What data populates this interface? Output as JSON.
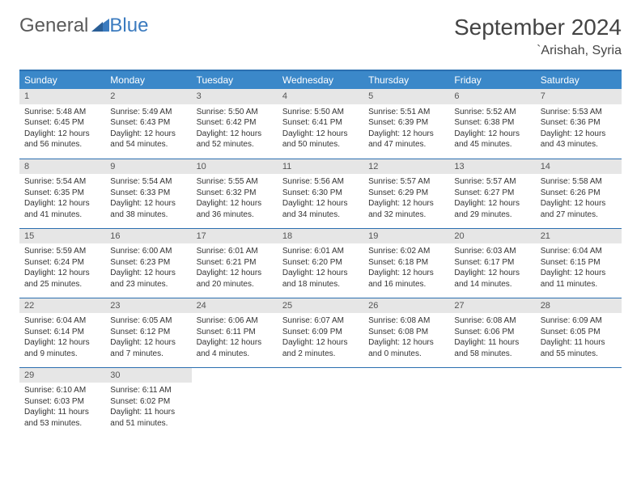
{
  "logo": {
    "word1": "General",
    "word2": "Blue"
  },
  "title": "September 2024",
  "location": "`Arishah, Syria",
  "colors": {
    "header_bg": "#3b88c9",
    "header_text": "#ffffff",
    "border": "#2b6fb0",
    "daynum_bg": "#e6e6e6",
    "logo_gray": "#5a5a5a",
    "logo_blue": "#3b7bbf"
  },
  "weekdays": [
    "Sunday",
    "Monday",
    "Tuesday",
    "Wednesday",
    "Thursday",
    "Friday",
    "Saturday"
  ],
  "days": [
    {
      "n": "1",
      "sr": "Sunrise: 5:48 AM",
      "ss": "Sunset: 6:45 PM",
      "d1": "Daylight: 12 hours",
      "d2": "and 56 minutes."
    },
    {
      "n": "2",
      "sr": "Sunrise: 5:49 AM",
      "ss": "Sunset: 6:43 PM",
      "d1": "Daylight: 12 hours",
      "d2": "and 54 minutes."
    },
    {
      "n": "3",
      "sr": "Sunrise: 5:50 AM",
      "ss": "Sunset: 6:42 PM",
      "d1": "Daylight: 12 hours",
      "d2": "and 52 minutes."
    },
    {
      "n": "4",
      "sr": "Sunrise: 5:50 AM",
      "ss": "Sunset: 6:41 PM",
      "d1": "Daylight: 12 hours",
      "d2": "and 50 minutes."
    },
    {
      "n": "5",
      "sr": "Sunrise: 5:51 AM",
      "ss": "Sunset: 6:39 PM",
      "d1": "Daylight: 12 hours",
      "d2": "and 47 minutes."
    },
    {
      "n": "6",
      "sr": "Sunrise: 5:52 AM",
      "ss": "Sunset: 6:38 PM",
      "d1": "Daylight: 12 hours",
      "d2": "and 45 minutes."
    },
    {
      "n": "7",
      "sr": "Sunrise: 5:53 AM",
      "ss": "Sunset: 6:36 PM",
      "d1": "Daylight: 12 hours",
      "d2": "and 43 minutes."
    },
    {
      "n": "8",
      "sr": "Sunrise: 5:54 AM",
      "ss": "Sunset: 6:35 PM",
      "d1": "Daylight: 12 hours",
      "d2": "and 41 minutes."
    },
    {
      "n": "9",
      "sr": "Sunrise: 5:54 AM",
      "ss": "Sunset: 6:33 PM",
      "d1": "Daylight: 12 hours",
      "d2": "and 38 minutes."
    },
    {
      "n": "10",
      "sr": "Sunrise: 5:55 AM",
      "ss": "Sunset: 6:32 PM",
      "d1": "Daylight: 12 hours",
      "d2": "and 36 minutes."
    },
    {
      "n": "11",
      "sr": "Sunrise: 5:56 AM",
      "ss": "Sunset: 6:30 PM",
      "d1": "Daylight: 12 hours",
      "d2": "and 34 minutes."
    },
    {
      "n": "12",
      "sr": "Sunrise: 5:57 AM",
      "ss": "Sunset: 6:29 PM",
      "d1": "Daylight: 12 hours",
      "d2": "and 32 minutes."
    },
    {
      "n": "13",
      "sr": "Sunrise: 5:57 AM",
      "ss": "Sunset: 6:27 PM",
      "d1": "Daylight: 12 hours",
      "d2": "and 29 minutes."
    },
    {
      "n": "14",
      "sr": "Sunrise: 5:58 AM",
      "ss": "Sunset: 6:26 PM",
      "d1": "Daylight: 12 hours",
      "d2": "and 27 minutes."
    },
    {
      "n": "15",
      "sr": "Sunrise: 5:59 AM",
      "ss": "Sunset: 6:24 PM",
      "d1": "Daylight: 12 hours",
      "d2": "and 25 minutes."
    },
    {
      "n": "16",
      "sr": "Sunrise: 6:00 AM",
      "ss": "Sunset: 6:23 PM",
      "d1": "Daylight: 12 hours",
      "d2": "and 23 minutes."
    },
    {
      "n": "17",
      "sr": "Sunrise: 6:01 AM",
      "ss": "Sunset: 6:21 PM",
      "d1": "Daylight: 12 hours",
      "d2": "and 20 minutes."
    },
    {
      "n": "18",
      "sr": "Sunrise: 6:01 AM",
      "ss": "Sunset: 6:20 PM",
      "d1": "Daylight: 12 hours",
      "d2": "and 18 minutes."
    },
    {
      "n": "19",
      "sr": "Sunrise: 6:02 AM",
      "ss": "Sunset: 6:18 PM",
      "d1": "Daylight: 12 hours",
      "d2": "and 16 minutes."
    },
    {
      "n": "20",
      "sr": "Sunrise: 6:03 AM",
      "ss": "Sunset: 6:17 PM",
      "d1": "Daylight: 12 hours",
      "d2": "and 14 minutes."
    },
    {
      "n": "21",
      "sr": "Sunrise: 6:04 AM",
      "ss": "Sunset: 6:15 PM",
      "d1": "Daylight: 12 hours",
      "d2": "and 11 minutes."
    },
    {
      "n": "22",
      "sr": "Sunrise: 6:04 AM",
      "ss": "Sunset: 6:14 PM",
      "d1": "Daylight: 12 hours",
      "d2": "and 9 minutes."
    },
    {
      "n": "23",
      "sr": "Sunrise: 6:05 AM",
      "ss": "Sunset: 6:12 PM",
      "d1": "Daylight: 12 hours",
      "d2": "and 7 minutes."
    },
    {
      "n": "24",
      "sr": "Sunrise: 6:06 AM",
      "ss": "Sunset: 6:11 PM",
      "d1": "Daylight: 12 hours",
      "d2": "and 4 minutes."
    },
    {
      "n": "25",
      "sr": "Sunrise: 6:07 AM",
      "ss": "Sunset: 6:09 PM",
      "d1": "Daylight: 12 hours",
      "d2": "and 2 minutes."
    },
    {
      "n": "26",
      "sr": "Sunrise: 6:08 AM",
      "ss": "Sunset: 6:08 PM",
      "d1": "Daylight: 12 hours",
      "d2": "and 0 minutes."
    },
    {
      "n": "27",
      "sr": "Sunrise: 6:08 AM",
      "ss": "Sunset: 6:06 PM",
      "d1": "Daylight: 11 hours",
      "d2": "and 58 minutes."
    },
    {
      "n": "28",
      "sr": "Sunrise: 6:09 AM",
      "ss": "Sunset: 6:05 PM",
      "d1": "Daylight: 11 hours",
      "d2": "and 55 minutes."
    },
    {
      "n": "29",
      "sr": "Sunrise: 6:10 AM",
      "ss": "Sunset: 6:03 PM",
      "d1": "Daylight: 11 hours",
      "d2": "and 53 minutes."
    },
    {
      "n": "30",
      "sr": "Sunrise: 6:11 AM",
      "ss": "Sunset: 6:02 PM",
      "d1": "Daylight: 11 hours",
      "d2": "and 51 minutes."
    }
  ]
}
